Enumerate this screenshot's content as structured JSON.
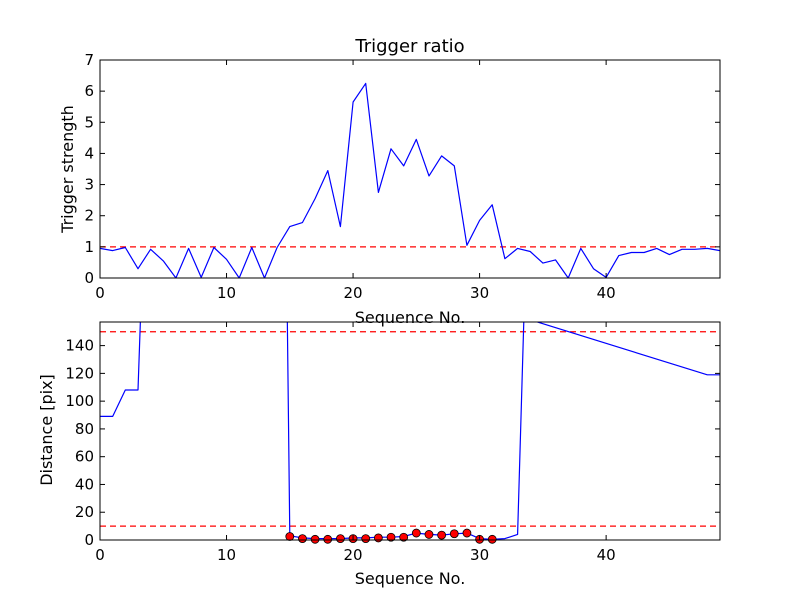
{
  "chart_data": [
    {
      "type": "line",
      "title": "Trigger ratio",
      "xlabel": "Sequence No.",
      "ylabel": "Trigger strength",
      "xlim": [
        0,
        49
      ],
      "ylim": [
        0,
        7
      ],
      "xticks": [
        0,
        10,
        20,
        30,
        40
      ],
      "yticks": [
        0,
        1,
        2,
        3,
        4,
        5,
        6,
        7
      ],
      "grid": false,
      "series": [
        {
          "color": "#0000ff",
          "style": "solid",
          "x": [
            0,
            1,
            2,
            3,
            4,
            5,
            6,
            7,
            8,
            9,
            10,
            11,
            12,
            13,
            14,
            15,
            16,
            17,
            18,
            19,
            20,
            21,
            22,
            23,
            24,
            25,
            26,
            27,
            28,
            29,
            30,
            31,
            32,
            33,
            34,
            35,
            36,
            37,
            38,
            39,
            40,
            41,
            42,
            43,
            44,
            45,
            46,
            47,
            48,
            49
          ],
          "values": [
            0.95,
            0.88,
            0.98,
            0.3,
            0.92,
            0.55,
            0.0,
            0.95,
            0.02,
            0.98,
            0.6,
            0.0,
            0.98,
            0.0,
            0.98,
            1.65,
            1.78,
            2.55,
            3.45,
            1.65,
            5.65,
            6.25,
            2.75,
            4.15,
            3.6,
            4.45,
            3.28,
            3.92,
            3.6,
            1.05,
            1.85,
            2.35,
            0.62,
            0.95,
            0.85,
            0.48,
            0.58,
            0.0,
            0.95,
            0.3,
            0.02,
            0.72,
            0.82,
            0.82,
            0.95,
            0.75,
            0.92,
            0.92,
            0.95,
            0.88
          ]
        }
      ],
      "hlines": [
        {
          "y": 1,
          "color": "#ff0000",
          "style": "dashed"
        }
      ]
    },
    {
      "type": "line",
      "title": "",
      "xlabel": "Sequence No.",
      "ylabel": "Distance [pix]",
      "xlim": [
        0,
        49
      ],
      "ylim": [
        0,
        157
      ],
      "xticks": [
        0,
        10,
        20,
        30,
        40
      ],
      "yticks": [
        0,
        20,
        40,
        60,
        80,
        100,
        120,
        140
      ],
      "grid": false,
      "series": [
        {
          "color": "#0000ff",
          "style": "solid",
          "x": [
            0,
            1,
            2,
            3,
            3.2,
            14.8,
            15,
            16,
            17,
            18,
            19,
            20,
            21,
            22,
            23,
            24,
            25,
            26,
            27,
            28,
            29,
            30,
            31,
            32,
            33,
            33.5,
            48,
            49
          ],
          "values": [
            89,
            89,
            108,
            108,
            160,
            160,
            3,
            1.5,
            1,
            1,
            1,
            1.5,
            1.5,
            2,
            2,
            2.5,
            5,
            4,
            3.5,
            4.5,
            5,
            1,
            0.5,
            1,
            4,
            160,
            119,
            119
          ]
        },
        {
          "type": "scatter",
          "color": "#ff0000",
          "x": [
            15,
            16,
            17,
            18,
            19,
            20,
            21,
            22,
            23,
            24,
            25,
            26,
            27,
            28,
            29,
            30,
            31
          ],
          "values": [
            2.5,
            1,
            0.5,
            0.5,
            1,
            1,
            1,
            1.5,
            2,
            2,
            5,
            4,
            3.5,
            4.5,
            5,
            0.5,
            0.5
          ]
        }
      ],
      "hlines": [
        {
          "y": 150,
          "color": "#ff0000",
          "style": "dashed"
        },
        {
          "y": 10,
          "color": "#ff0000",
          "style": "dashed"
        }
      ]
    }
  ]
}
